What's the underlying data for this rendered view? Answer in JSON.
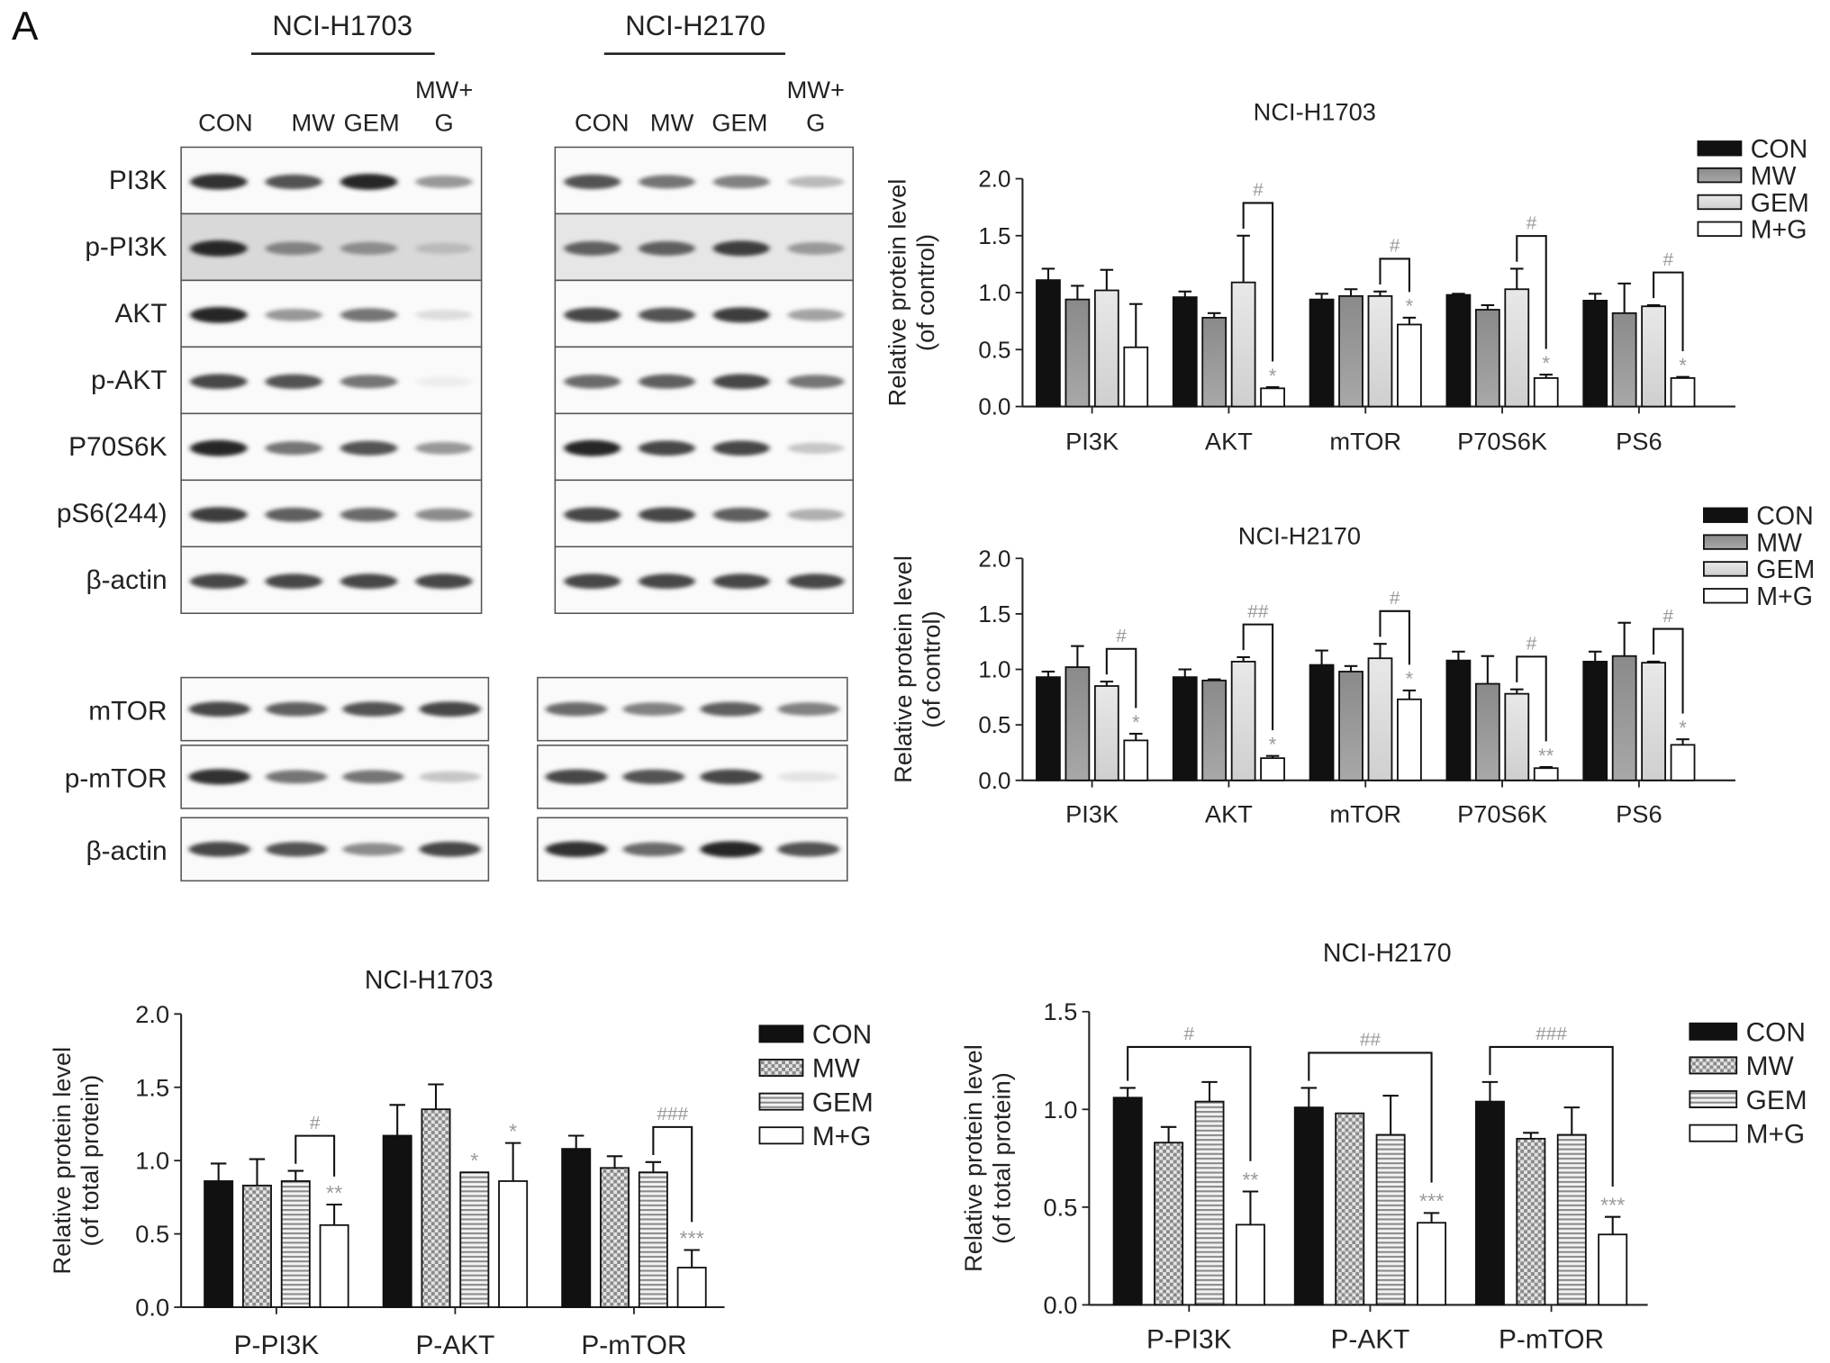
{
  "panel_label": "A",
  "western": {
    "blots": [
      {
        "cell_line": "NCI-H1703",
        "lanes": [
          "CON",
          "MW",
          "GEM",
          "MW+\nG"
        ],
        "rows": [
          "PI3K",
          "p-PI3K",
          "AKT",
          "p-AKT",
          "P70S6K",
          "pS6(244)",
          "β-actin"
        ],
        "lower_rows": [
          "mTOR",
          "p-mTOR",
          "β-actin"
        ],
        "row_intensity": [
          [
            0.9,
            0.75,
            0.95,
            0.45
          ],
          [
            0.95,
            0.55,
            0.5,
            0.3
          ],
          [
            0.95,
            0.45,
            0.6,
            0.15
          ],
          [
            0.8,
            0.75,
            0.6,
            0.08
          ],
          [
            0.95,
            0.6,
            0.75,
            0.45
          ],
          [
            0.85,
            0.7,
            0.65,
            0.5
          ],
          [
            0.8,
            0.8,
            0.8,
            0.8
          ]
        ],
        "lower_intensity": [
          [
            0.8,
            0.7,
            0.75,
            0.8
          ],
          [
            0.9,
            0.6,
            0.6,
            0.25
          ],
          [
            0.8,
            0.75,
            0.5,
            0.8
          ]
        ]
      },
      {
        "cell_line": "NCI-H2170",
        "lanes": [
          "CON",
          "MW",
          "GEM",
          "MW+\nG"
        ],
        "row_intensity": [
          [
            0.75,
            0.6,
            0.55,
            0.3
          ],
          [
            0.7,
            0.7,
            0.85,
            0.45
          ],
          [
            0.8,
            0.75,
            0.85,
            0.4
          ],
          [
            0.65,
            0.7,
            0.8,
            0.6
          ],
          [
            0.95,
            0.8,
            0.8,
            0.25
          ],
          [
            0.8,
            0.8,
            0.7,
            0.35
          ],
          [
            0.8,
            0.8,
            0.8,
            0.8
          ]
        ],
        "lower_intensity": [
          [
            0.65,
            0.55,
            0.7,
            0.55
          ],
          [
            0.8,
            0.75,
            0.8,
            0.12
          ],
          [
            0.9,
            0.65,
            0.95,
            0.75
          ]
        ]
      }
    ]
  },
  "chart_data": [
    {
      "type": "bar",
      "title": "NCI-H1703",
      "ylabel": "Relative protein level\n(of control)",
      "ylim": [
        0,
        2.0
      ],
      "yticks": [
        "0.0",
        "0.5",
        "1.0",
        "1.5",
        "2.0"
      ],
      "categories": [
        "PI3K",
        "AKT",
        "mTOR",
        "P70S6K",
        "PS6"
      ],
      "legend_position": "top-right",
      "series": [
        {
          "name": "CON",
          "values": [
            1.11,
            0.96,
            0.94,
            0.98,
            0.93
          ],
          "errors": [
            0.1,
            0.05,
            0.05,
            0.01,
            0.06
          ]
        },
        {
          "name": "MW",
          "values": [
            0.94,
            0.78,
            0.97,
            0.85,
            0.82
          ],
          "errors": [
            0.12,
            0.04,
            0.06,
            0.04,
            0.26
          ]
        },
        {
          "name": "GEM",
          "values": [
            1.02,
            1.09,
            0.97,
            1.03,
            0.88
          ],
          "errors": [
            0.18,
            0.41,
            0.04,
            0.18,
            0.01
          ]
        },
        {
          "name": "M+G",
          "values": [
            0.52,
            0.16,
            0.72,
            0.25,
            0.25
          ],
          "errors": [
            0.38,
            0.01,
            0.06,
            0.03,
            0.01
          ]
        }
      ],
      "star_labels": [
        "",
        "*",
        "*",
        "*",
        "*"
      ],
      "hash_labels": [
        "",
        "#",
        "#",
        "#",
        "#"
      ],
      "bracket_from": [
        null,
        2,
        2,
        2,
        2
      ]
    },
    {
      "type": "bar",
      "title": "NCI-H2170",
      "ylabel": "Relative protein level\n(of control)",
      "ylim": [
        0,
        2.0
      ],
      "yticks": [
        "0.0",
        "0.5",
        "1.0",
        "1.5",
        "2.0"
      ],
      "categories": [
        "PI3K",
        "AKT",
        "mTOR",
        "P70S6K",
        "PS6"
      ],
      "legend_position": "top-right",
      "series": [
        {
          "name": "CON",
          "values": [
            0.93,
            0.93,
            1.04,
            1.08,
            1.07
          ],
          "errors": [
            0.05,
            0.07,
            0.13,
            0.08,
            0.09
          ]
        },
        {
          "name": "MW",
          "values": [
            1.02,
            0.9,
            0.98,
            0.87,
            1.12
          ],
          "errors": [
            0.19,
            0.01,
            0.05,
            0.25,
            0.3
          ]
        },
        {
          "name": "GEM",
          "values": [
            0.85,
            1.07,
            1.1,
            0.78,
            1.06
          ],
          "errors": [
            0.04,
            0.04,
            0.13,
            0.04,
            0.01
          ]
        },
        {
          "name": "M+G",
          "values": [
            0.36,
            0.2,
            0.73,
            0.11,
            0.32
          ],
          "errors": [
            0.06,
            0.02,
            0.08,
            0.01,
            0.05
          ]
        }
      ],
      "star_labels": [
        "*",
        "*",
        "*",
        "**",
        "*"
      ],
      "hash_labels": [
        "#",
        "##",
        "#",
        "#",
        "#"
      ],
      "bracket_from": [
        2,
        2,
        2,
        2,
        2
      ]
    },
    {
      "type": "bar",
      "title": "NCI-H1703",
      "ylabel": "Relative protein level\n(of total protein)",
      "ylim": [
        0,
        2.0
      ],
      "yticks": [
        "0.0",
        "0.5",
        "1.0",
        "1.5",
        "2.0"
      ],
      "categories": [
        "P-PI3K",
        "P-AKT",
        "P-mTOR"
      ],
      "legend_position": "right",
      "series": [
        {
          "name": "CON",
          "values": [
            0.86,
            1.17,
            1.08
          ],
          "errors": [
            0.12,
            0.21,
            0.09
          ]
        },
        {
          "name": "MW",
          "values": [
            0.83,
            1.35,
            0.95
          ],
          "errors": [
            0.18,
            0.17,
            0.08
          ]
        },
        {
          "name": "GEM",
          "values": [
            0.86,
            0.92,
            0.92
          ],
          "errors": [
            0.07,
            0.0,
            0.07
          ]
        },
        {
          "name": "M+G",
          "values": [
            0.56,
            0.86,
            0.27
          ],
          "errors": [
            0.14,
            0.26,
            0.12
          ]
        }
      ],
      "star_on": [
        3,
        2,
        3
      ],
      "star_labels": [
        "**",
        "*",
        "***"
      ],
      "extra_star": [
        null,
        {
          "bar": 3,
          "label": "*"
        },
        null
      ],
      "hash_labels": [
        "#",
        "",
        "###"
      ],
      "bracket_from": [
        2,
        null,
        2
      ]
    },
    {
      "type": "bar",
      "title": "NCI-H2170",
      "ylabel": "Relative protein level\n(of total protein)",
      "ylim": [
        0,
        1.5
      ],
      "yticks": [
        "0.0",
        "0.5",
        "1.0",
        "1.5"
      ],
      "categories": [
        "P-PI3K",
        "P-AKT",
        "P-mTOR"
      ],
      "legend_position": "right",
      "series": [
        {
          "name": "CON",
          "values": [
            1.06,
            1.01,
            1.04
          ],
          "errors": [
            0.05,
            0.1,
            0.1
          ]
        },
        {
          "name": "MW",
          "values": [
            0.83,
            0.98,
            0.85
          ],
          "errors": [
            0.08,
            0.0,
            0.03
          ]
        },
        {
          "name": "GEM",
          "values": [
            1.04,
            0.87,
            0.87
          ],
          "errors": [
            0.1,
            0.2,
            0.14
          ]
        },
        {
          "name": "M+G",
          "values": [
            0.41,
            0.42,
            0.36
          ],
          "errors": [
            0.17,
            0.05,
            0.09
          ]
        }
      ],
      "star_on": [
        3,
        3,
        3
      ],
      "star_labels": [
        "**",
        "***",
        "***"
      ],
      "hash_labels": [
        "#",
        "##",
        "###"
      ],
      "bracket_from": [
        0,
        0,
        0
      ]
    }
  ],
  "colors": {
    "CON": "#111111",
    "MW_top": "#8c8c8c",
    "GEM_top": "#e6e6e6",
    "MG": "#ffffff",
    "stat_gray": "#9a9a9a"
  }
}
